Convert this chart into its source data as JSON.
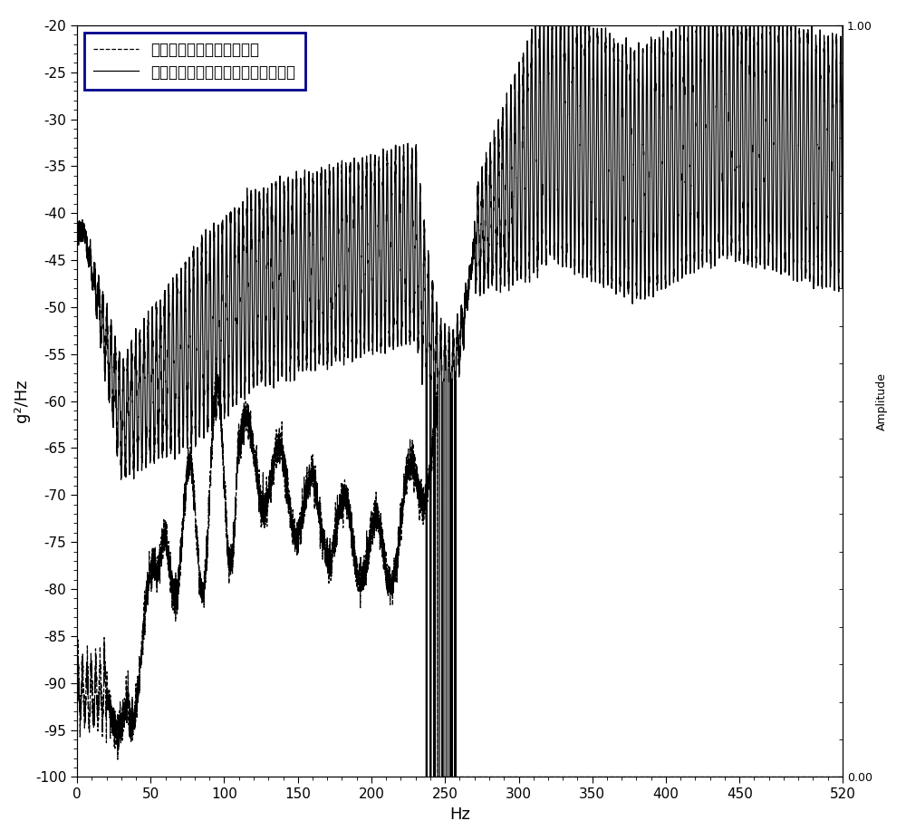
{
  "xlabel": "Hz",
  "ylabel": "g²/Hz",
  "ylabel_right": "Amplitude",
  "xlim": [
    0,
    520
  ],
  "ylim": [
    -100,
    -20
  ],
  "yticks": [
    -100,
    -95,
    -90,
    -85,
    -80,
    -75,
    -70,
    -65,
    -60,
    -55,
    -50,
    -45,
    -40,
    -35,
    -30,
    -25,
    -20
  ],
  "xticks": [
    0,
    50,
    100,
    150,
    200,
    250,
    300,
    350,
    400,
    450,
    520
  ],
  "legend1": "敏击激励下振动响应功率谱",
  "legend2": "切削渐变凸台激励下振动响应功率谱",
  "right_ytick_labels": [
    "0.00",
    "1.00"
  ],
  "line_color": "#000000",
  "background": "#ffffff",
  "legend_edge_color": "#00008B"
}
